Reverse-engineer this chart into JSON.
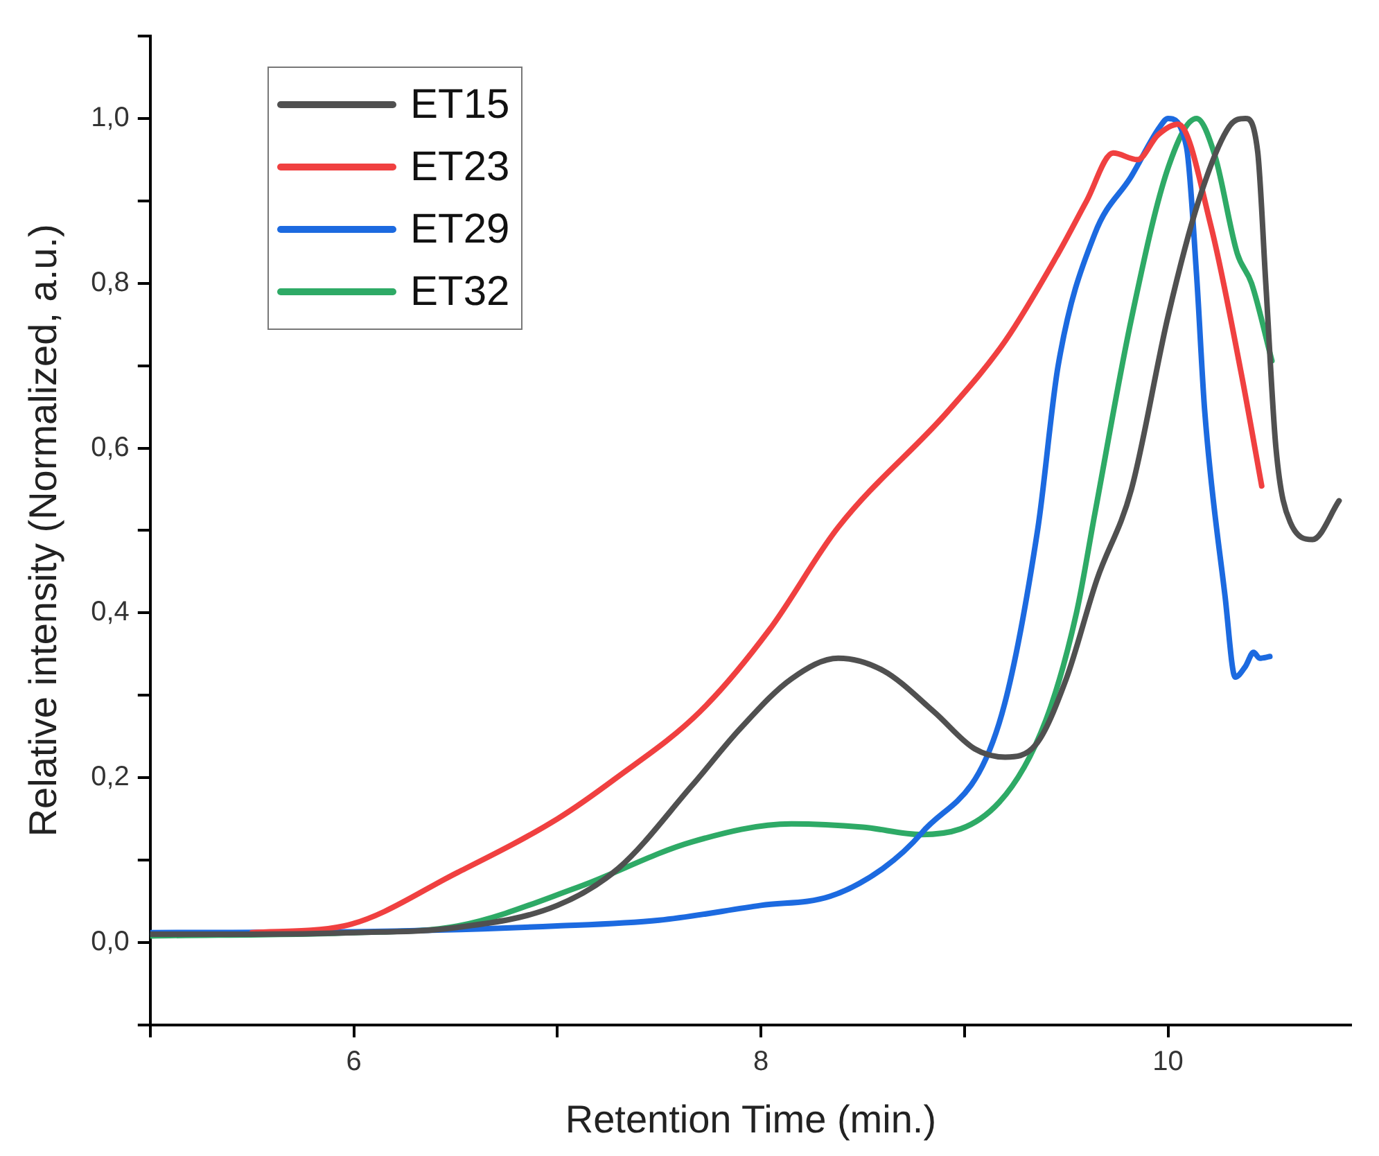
{
  "chart_data": {
    "type": "line",
    "xlabel": "Retention Time (min.)",
    "ylabel": "Relative intensity (Normalized, a.u.)",
    "xlim": [
      5,
      10.9
    ],
    "ylim": [
      -0.1,
      1.1
    ],
    "xticks": [
      {
        "value": 5,
        "label": null
      },
      {
        "value": 6,
        "label": "6"
      },
      {
        "value": 7,
        "label": null
      },
      {
        "value": 8,
        "label": "8"
      },
      {
        "value": 9,
        "label": null
      },
      {
        "value": 10,
        "label": "10"
      }
    ],
    "yticks": [
      {
        "value": -0.1,
        "label": null
      },
      {
        "value": 0,
        "label": "0,0"
      },
      {
        "value": 0.1,
        "label": null
      },
      {
        "value": 0.2,
        "label": "0,2"
      },
      {
        "value": 0.3,
        "label": null
      },
      {
        "value": 0.4,
        "label": "0,4"
      },
      {
        "value": 0.5,
        "label": null
      },
      {
        "value": 0.6,
        "label": "0,6"
      },
      {
        "value": 0.7,
        "label": null
      },
      {
        "value": 0.8,
        "label": "0,8"
      },
      {
        "value": 0.9,
        "label": null
      },
      {
        "value": 1.0,
        "label": "1,0"
      },
      {
        "value": 1.1,
        "label": null
      }
    ],
    "grid": false,
    "legend": "top left",
    "marker": "none",
    "line_style": "solid",
    "series": [
      {
        "name": "ET15",
        "color": "#505050",
        "x": [
          5,
          5.5,
          6,
          6.5,
          7,
          7.3,
          7.66,
          7.9,
          8.15,
          8.38,
          8.6,
          8.85,
          9.05,
          9.2,
          9.35,
          9.5,
          9.65,
          9.82,
          10,
          10.15,
          10.3,
          10.38,
          10.44,
          10.48,
          10.53,
          10.6,
          10.71,
          10.84
        ],
        "values": [
          0.01,
          0.01,
          0.012,
          0.018,
          0.045,
          0.09,
          0.19,
          0.26,
          0.32,
          0.345,
          0.33,
          0.28,
          0.235,
          0.225,
          0.24,
          0.32,
          0.44,
          0.55,
          0.76,
          0.9,
          0.99,
          1.0,
          0.96,
          0.8,
          0.6,
          0.51,
          0.489,
          0.536
        ]
      },
      {
        "name": "ET23",
        "color": "#f04040",
        "x": [
          5.5,
          5.95,
          6.51,
          7,
          7.28,
          7.7,
          8.04,
          8.38,
          8.92,
          9.2,
          9.46,
          9.6,
          9.73,
          9.85,
          9.95,
          10.05,
          10.21,
          10.36,
          10.46
        ],
        "values": [
          0.012,
          0.02,
          0.085,
          0.15,
          0.198,
          0.28,
          0.379,
          0.504,
          0.645,
          0.73,
          0.836,
          0.9,
          0.958,
          0.95,
          0.98,
          0.993,
          0.87,
          0.69,
          0.554
        ]
      },
      {
        "name": "ET29",
        "color": "#1c6ae0",
        "x": [
          5,
          6,
          7,
          7.5,
          8,
          8.34,
          8.6,
          8.79,
          9.17,
          9.36,
          9.46,
          9.64,
          9.82,
          9.96,
          10,
          10.09,
          10.14,
          10.18,
          10.28,
          10.33,
          10.38,
          10.42,
          10.45,
          10.5
        ],
        "values": [
          0.012,
          0.013,
          0.02,
          0.027,
          0.045,
          0.056,
          0.09,
          0.133,
          0.266,
          0.502,
          0.7,
          0.86,
          0.93,
          0.99,
          1.0,
          0.966,
          0.81,
          0.645,
          0.42,
          0.322,
          0.335,
          0.352,
          0.345,
          0.347
        ]
      },
      {
        "name": "ET32",
        "color": "#2eaa66",
        "x": [
          5,
          6,
          6.51,
          7.1,
          7.66,
          8.15,
          8.5,
          8.79,
          9.17,
          9.4,
          9.55,
          9.64,
          9.82,
          10,
          10.14,
          10.23,
          10.34,
          10.41,
          10.51
        ],
        "values": [
          0.008,
          0.012,
          0.02,
          0.067,
          0.122,
          0.144,
          0.14,
          0.131,
          0.17,
          0.27,
          0.4,
          0.52,
          0.757,
          0.94,
          1.0,
          0.955,
          0.836,
          0.8,
          0.706
        ]
      }
    ]
  }
}
